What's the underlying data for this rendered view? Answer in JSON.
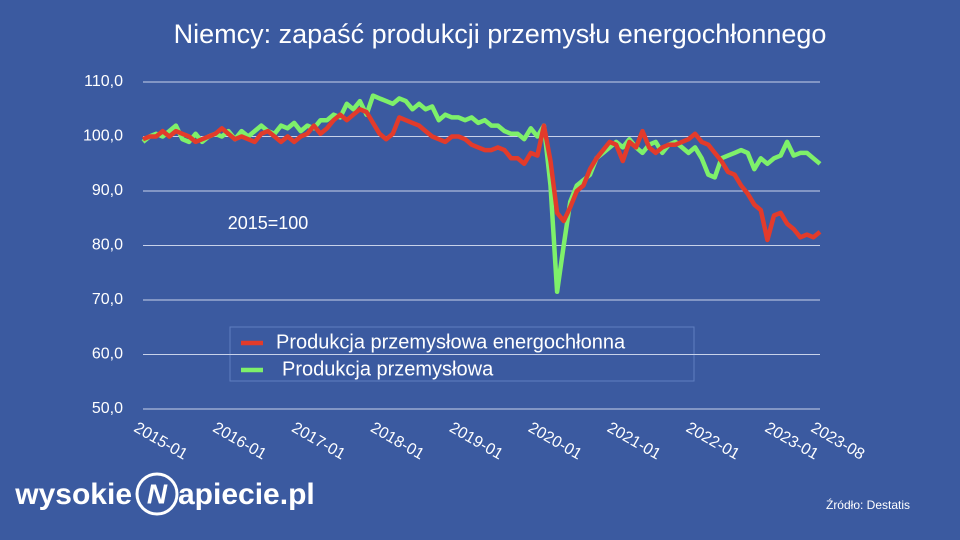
{
  "chart_data": {
    "type": "line",
    "title": "Niemcy: zapaść produkcji przemysłu energochłonnego",
    "annotation": "2015=100",
    "source": "Źródło: Destatis",
    "logo": [
      "wysokie",
      "N",
      "apiecie.pl"
    ],
    "x": [
      "2015-01",
      "2015-02",
      "2015-03",
      "2015-04",
      "2015-05",
      "2015-06",
      "2015-07",
      "2015-08",
      "2015-09",
      "2015-10",
      "2015-11",
      "2015-12",
      "2016-01",
      "2016-02",
      "2016-03",
      "2016-04",
      "2016-05",
      "2016-06",
      "2016-07",
      "2016-08",
      "2016-09",
      "2016-10",
      "2016-11",
      "2016-12",
      "2017-01",
      "2017-02",
      "2017-03",
      "2017-04",
      "2017-05",
      "2017-06",
      "2017-07",
      "2017-08",
      "2017-09",
      "2017-10",
      "2017-11",
      "2017-12",
      "2018-01",
      "2018-02",
      "2018-03",
      "2018-04",
      "2018-05",
      "2018-06",
      "2018-07",
      "2018-08",
      "2018-09",
      "2018-10",
      "2018-11",
      "2018-12",
      "2019-01",
      "2019-02",
      "2019-03",
      "2019-04",
      "2019-05",
      "2019-06",
      "2019-07",
      "2019-08",
      "2019-09",
      "2019-10",
      "2019-11",
      "2019-12",
      "2020-01",
      "2020-02",
      "2020-03",
      "2020-04",
      "2020-05",
      "2020-06",
      "2020-07",
      "2020-08",
      "2020-09",
      "2020-10",
      "2020-11",
      "2020-12",
      "2021-01",
      "2021-02",
      "2021-03",
      "2021-04",
      "2021-05",
      "2021-06",
      "2021-07",
      "2021-08",
      "2021-09",
      "2021-10",
      "2021-11",
      "2021-12",
      "2022-01",
      "2022-02",
      "2022-03",
      "2022-04",
      "2022-05",
      "2022-06",
      "2022-07",
      "2022-08",
      "2022-09",
      "2022-10",
      "2022-11",
      "2022-12",
      "2023-01",
      "2023-02",
      "2023-03",
      "2023-04",
      "2023-05",
      "2023-06",
      "2023-07",
      "2023-08"
    ],
    "xticks": [
      "2015-01",
      "2016-01",
      "2017-01",
      "2018-01",
      "2019-01",
      "2020-01",
      "2021-01",
      "2022-01",
      "2023-01",
      "2023-08"
    ],
    "series": [
      {
        "name": "Produkcja przemysłowa energochłonna",
        "color": "#e23b2b",
        "values": [
          99.5,
          100,
          100,
          101,
          100,
          101,
          100.5,
          100,
          99,
          99.5,
          100,
          100.5,
          101.5,
          100.5,
          99.5,
          100,
          99.5,
          99,
          100.5,
          101,
          100,
          99,
          100,
          99,
          100,
          100.5,
          102,
          100.5,
          101.5,
          103,
          104,
          103,
          104,
          105,
          104.5,
          102.5,
          100.5,
          99.5,
          100.5,
          103.5,
          103,
          102.5,
          102,
          101,
          100,
          99.5,
          99,
          100,
          100,
          99.5,
          98.5,
          98,
          97.5,
          97.5,
          98,
          97.5,
          96,
          96,
          95,
          97,
          96.5,
          102,
          95.5,
          86,
          84.5,
          87,
          90,
          91,
          94,
          96,
          97.5,
          99,
          98.5,
          95.5,
          99,
          98,
          101,
          98,
          97,
          98,
          98.5,
          98.5,
          99,
          99.5,
          100.5,
          99,
          98.5,
          97,
          95.5,
          93.5,
          93,
          91,
          89.5,
          87.5,
          86.5,
          81,
          85.5,
          86,
          84,
          83,
          81.5,
          82,
          81.5,
          82.5
        ]
      },
      {
        "name": "Produkcja przemysłowa",
        "color": "#7ef06a",
        "values": [
          99,
          100,
          100.5,
          100,
          101,
          102,
          99.5,
          99,
          100.5,
          99,
          100,
          100.5,
          100,
          101,
          99.5,
          101,
          100,
          101,
          102,
          101,
          100.5,
          102,
          101.5,
          102.5,
          101,
          102,
          101.5,
          103,
          103,
          104,
          103.5,
          106,
          105,
          106.5,
          104,
          107.5,
          107,
          106.5,
          106,
          107,
          106.5,
          105,
          106,
          105,
          105.5,
          103,
          104,
          103.5,
          103.5,
          103,
          103.5,
          102.5,
          103,
          102,
          102,
          101,
          100.5,
          100.5,
          99.5,
          101.5,
          100,
          102,
          91,
          71.5,
          80,
          88,
          91,
          92,
          93,
          96,
          97,
          98,
          99,
          98,
          99.5,
          98,
          97,
          98.5,
          99,
          97,
          98.5,
          99,
          98,
          97,
          98,
          96,
          93,
          92.5,
          96,
          96.5,
          97,
          97.5,
          97,
          94,
          96,
          95,
          96,
          96.5,
          99,
          96.5,
          97,
          97,
          96,
          95
        ]
      }
    ],
    "ylim": [
      50,
      110
    ],
    "yticks": [
      {
        "value": 50,
        "label": "50,0"
      },
      {
        "value": 60,
        "label": "60,0"
      },
      {
        "value": 70,
        "label": "70,0"
      },
      {
        "value": 80,
        "label": "80,0"
      },
      {
        "value": 90,
        "label": "90,0"
      },
      {
        "value": 100,
        "label": "100,0"
      },
      {
        "value": 110,
        "label": "110,0"
      }
    ],
    "grid": true
  }
}
